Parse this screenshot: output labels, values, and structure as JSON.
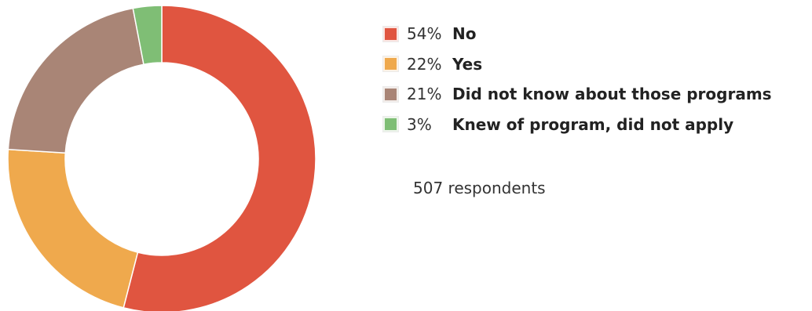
{
  "chart_data": {
    "type": "pie",
    "donut": true,
    "slices": [
      {
        "percent_label": "54%",
        "label": "No",
        "value": 54,
        "color": "#e05540"
      },
      {
        "percent_label": "22%",
        "label": "Yes",
        "value": 22,
        "color": "#efa94d"
      },
      {
        "percent_label": "21%",
        "label": "Did not know about those programs",
        "value": 21,
        "color": "#a98576"
      },
      {
        "percent_label": "3%",
        "label": "Knew of program, did not apply",
        "value": 3,
        "color": "#7fbe75"
      }
    ],
    "legend_position": "right",
    "footnote": "507 respondents"
  }
}
